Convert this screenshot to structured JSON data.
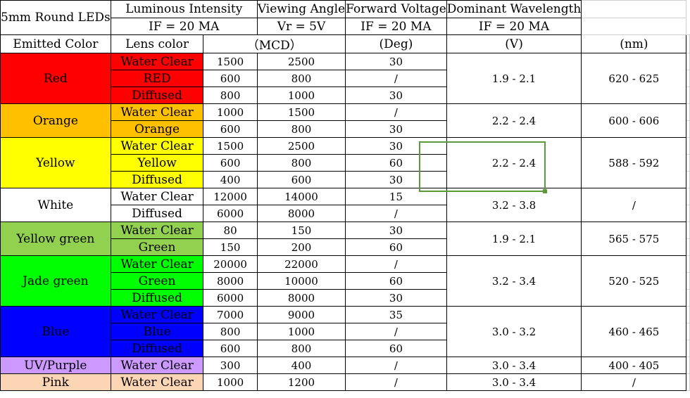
{
  "header": {
    "title": "5mm Round LEDs",
    "luminous": "Luminous Intensity",
    "viewing": "Viewing Angle",
    "forward": "Forward Voltage",
    "dominant": "Dominant Wavelength",
    "if_luminous": "IF = 20 MA",
    "vr": "Vr = 5V",
    "if_forward": "IF = 20 MA",
    "if_dominant": "IF = 20 MA",
    "emitted": "Emitted Color",
    "lens": "Lens color",
    "mcd": "（MCD）",
    "deg": "(Deg)",
    "v": "(V)",
    "nm": "(nm)"
  },
  "colors": {
    "red": "#ff0000",
    "orange": "#ffc000",
    "yellow": "#ffff00",
    "white": "#ffffff",
    "yellowgreen": "#92d050",
    "jadegreen": "#00ff00",
    "blue": "#0000ff",
    "purple": "#cc99ff",
    "pink": "#fcd5b4",
    "selection": "#5b9a3a"
  },
  "groups": [
    {
      "color": "Red",
      "fill": "#ff0000",
      "forward": "1.9 - 2.1",
      "wavelength": "620 - 625",
      "rows": [
        {
          "lens": "Water Clear",
          "min": "1500",
          "max": "2500",
          "angle": "30"
        },
        {
          "lens": "RED",
          "min": "600",
          "max": "800",
          "angle": "/"
        },
        {
          "lens": "Diffused",
          "min": "800",
          "max": "1000",
          "angle": "30"
        }
      ]
    },
    {
      "color": "Orange",
      "fill": "#ffc000",
      "forward": "2.2 - 2.4",
      "wavelength": "600 - 606",
      "rows": [
        {
          "lens": "Water Clear",
          "min": "1000",
          "max": "1500",
          "angle": "/"
        },
        {
          "lens": "Orange",
          "min": "600",
          "max": "800",
          "angle": "30"
        }
      ]
    },
    {
      "color": "Yellow",
      "fill": "#ffff00",
      "forward": "2.2 - 2.4",
      "wavelength": "588 - 592",
      "rows": [
        {
          "lens": "Water Clear",
          "min": "1500",
          "max": "2500",
          "angle": "30"
        },
        {
          "lens": "Yellow",
          "min": "600",
          "max": "800",
          "angle": "60"
        },
        {
          "lens": "Diffused",
          "min": "400",
          "max": "600",
          "angle": "30"
        }
      ]
    },
    {
      "color": "White",
      "fill": "#ffffff",
      "forward": "3.2 - 3.8",
      "wavelength": "/",
      "rows": [
        {
          "lens": "Water Clear",
          "min": "12000",
          "max": "14000",
          "angle": "15"
        },
        {
          "lens": "Diffused",
          "min": "6000",
          "max": "8000",
          "angle": "/"
        }
      ]
    },
    {
      "color": "Yellow green",
      "fill": "#92d050",
      "forward": "1.9 - 2.1",
      "wavelength": "565 - 575",
      "rows": [
        {
          "lens": "Water Clear",
          "min": "80",
          "max": "150",
          "angle": "30"
        },
        {
          "lens": "Green",
          "min": "150",
          "max": "200",
          "angle": "60"
        }
      ]
    },
    {
      "color": "Jade green",
      "fill": "#00ff00",
      "forward": "3.2 - 3.4",
      "wavelength": "520 - 525",
      "rows": [
        {
          "lens": "Water Clear",
          "min": "20000",
          "max": "22000",
          "angle": "/"
        },
        {
          "lens": "Green",
          "min": "8000",
          "max": "10000",
          "angle": "60"
        },
        {
          "lens": "Diffused",
          "min": "6000",
          "max": "8000",
          "angle": "30"
        }
      ]
    },
    {
      "color": "Blue",
      "fill": "#0000ff",
      "forward": "3.0 - 3.2",
      "wavelength": "460 - 465",
      "rows": [
        {
          "lens": "Water Clear",
          "min": "7000",
          "max": "9000",
          "angle": "35"
        },
        {
          "lens": "Blue",
          "min": "800",
          "max": "1000",
          "angle": "/"
        },
        {
          "lens": "Diffused",
          "min": "600",
          "max": "800",
          "angle": "60"
        }
      ]
    },
    {
      "color": "UV/Purple",
      "fill": "#cc99ff",
      "forward": "3.0 - 3.4",
      "wavelength": "400 - 405",
      "rows": [
        {
          "lens": "Water Clear",
          "min": "300",
          "max": "400",
          "angle": "/"
        }
      ]
    },
    {
      "color": "Pink",
      "fill": "#fcd5b4",
      "forward": "3.0 - 3.4",
      "wavelength": "/",
      "rows": [
        {
          "lens": "Water Clear",
          "min": "1000",
          "max": "1200",
          "angle": "/"
        }
      ]
    }
  ]
}
